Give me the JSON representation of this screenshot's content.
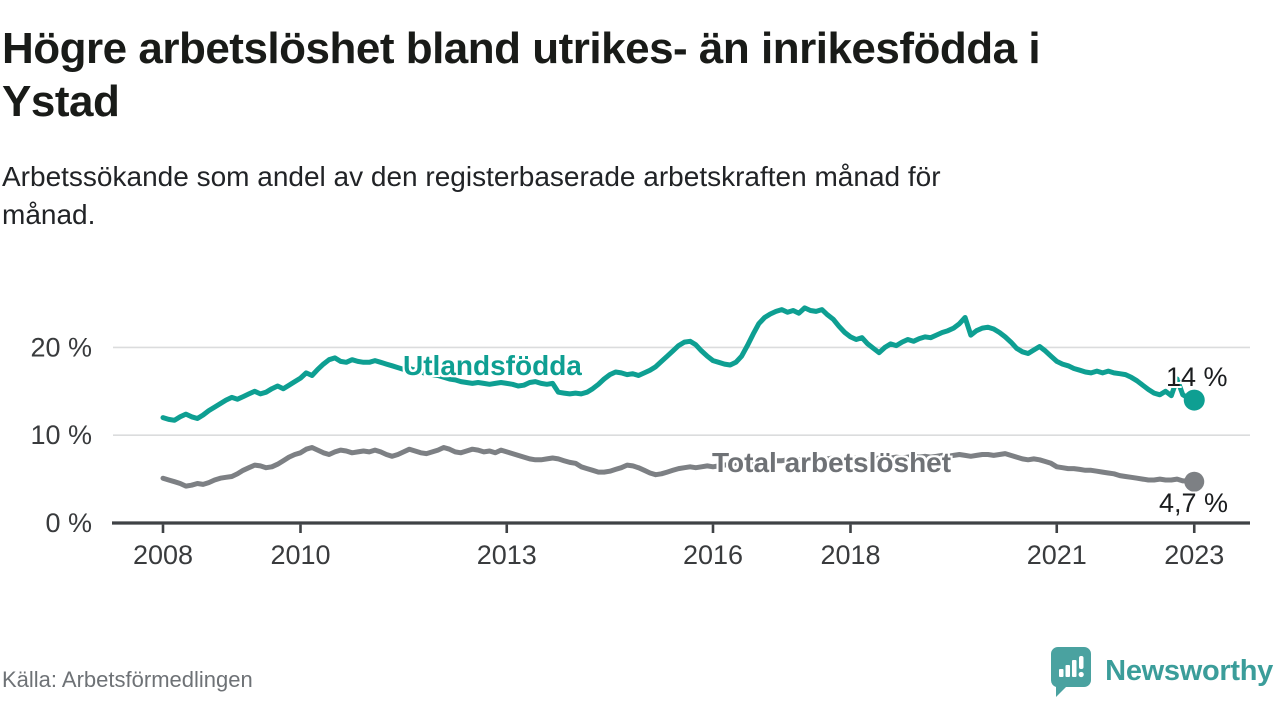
{
  "header": {
    "title": "Högre arbetslöshet bland utrikes- än inrikesfödda i\nYstad",
    "subtitle": "Arbetssökande som andel av den registerbaserade arbetskraften månad för\nmånad."
  },
  "chart_data": {
    "type": "line",
    "frequency": "monthly",
    "x_start": "2008-01",
    "x_end": "2023-01",
    "x_ticks": [
      {
        "year": 2008,
        "label": "2008"
      },
      {
        "year": 2010,
        "label": "2010"
      },
      {
        "year": 2013,
        "label": "2013"
      },
      {
        "year": 2016,
        "label": "2016"
      },
      {
        "year": 2018,
        "label": "2018"
      },
      {
        "year": 2021,
        "label": "2021"
      },
      {
        "year": 2023,
        "label": "2023"
      }
    ],
    "y_ticks": [
      {
        "value": 0,
        "label": "0 %"
      },
      {
        "value": 10,
        "label": "10 %"
      },
      {
        "value": 20,
        "label": "20 %"
      }
    ],
    "ylim": [
      0,
      26
    ],
    "grid": "horizontal",
    "legend_position": "inline-labels",
    "series": [
      {
        "name": "Utlandsfödda",
        "color": "#0e9f92",
        "end_label": "14 %",
        "end_value": 14,
        "values": [
          12.0,
          11.8,
          11.7,
          12.1,
          12.4,
          12.1,
          11.9,
          12.3,
          12.8,
          13.2,
          13.6,
          14.0,
          14.3,
          14.1,
          14.4,
          14.7,
          15.0,
          14.7,
          14.9,
          15.3,
          15.6,
          15.3,
          15.7,
          16.1,
          16.5,
          17.1,
          16.8,
          17.5,
          18.1,
          18.6,
          18.8,
          18.4,
          18.3,
          18.6,
          18.4,
          18.3,
          18.3,
          18.5,
          18.3,
          18.1,
          17.9,
          17.7,
          17.5,
          17.6,
          17.4,
          17.2,
          17.0,
          16.9,
          16.8,
          16.6,
          16.4,
          16.3,
          16.1,
          16.0,
          15.9,
          16.0,
          15.9,
          15.8,
          15.9,
          16.0,
          15.9,
          15.8,
          15.6,
          15.7,
          16.0,
          16.1,
          15.9,
          15.8,
          15.9,
          14.9,
          14.8,
          14.7,
          14.8,
          14.7,
          14.9,
          15.3,
          15.8,
          16.4,
          16.9,
          17.2,
          17.1,
          16.9,
          17.0,
          16.8,
          17.1,
          17.4,
          17.8,
          18.4,
          19.0,
          19.6,
          20.2,
          20.6,
          20.7,
          20.3,
          19.6,
          19.0,
          18.5,
          18.3,
          18.1,
          18.0,
          18.3,
          19.0,
          20.2,
          21.5,
          22.7,
          23.4,
          23.8,
          24.1,
          24.3,
          24.0,
          24.2,
          23.9,
          24.5,
          24.2,
          24.1,
          24.3,
          23.7,
          23.2,
          22.4,
          21.7,
          21.2,
          20.9,
          21.1,
          20.4,
          19.9,
          19.4,
          20.0,
          20.4,
          20.2,
          20.6,
          20.9,
          20.7,
          21.0,
          21.2,
          21.1,
          21.4,
          21.7,
          21.9,
          22.2,
          22.7,
          23.4,
          21.4,
          21.9,
          22.2,
          22.3,
          22.1,
          21.7,
          21.2,
          20.6,
          19.9,
          19.5,
          19.3,
          19.7,
          20.1,
          19.6,
          19.0,
          18.4,
          18.1,
          17.9,
          17.6,
          17.4,
          17.2,
          17.1,
          17.3,
          17.1,
          17.3,
          17.1,
          17.0,
          16.9,
          16.6,
          16.2,
          15.7,
          15.2,
          14.8,
          14.6,
          15.0,
          14.5,
          16.4,
          14.6,
          14.2,
          14.0
        ]
      },
      {
        "name": "Total arbetslöshet",
        "color": "#7d8084",
        "end_label": "4,7 %",
        "end_value": 4.7,
        "values": [
          5.1,
          4.9,
          4.7,
          4.5,
          4.2,
          4.3,
          4.5,
          4.4,
          4.6,
          4.9,
          5.1,
          5.2,
          5.3,
          5.6,
          6.0,
          6.3,
          6.6,
          6.5,
          6.3,
          6.4,
          6.7,
          7.1,
          7.5,
          7.8,
          8.0,
          8.4,
          8.6,
          8.3,
          8.0,
          7.8,
          8.1,
          8.3,
          8.2,
          8.0,
          8.1,
          8.2,
          8.1,
          8.3,
          8.1,
          7.8,
          7.6,
          7.8,
          8.1,
          8.4,
          8.2,
          8.0,
          7.9,
          8.1,
          8.3,
          8.6,
          8.4,
          8.1,
          8.0,
          8.2,
          8.4,
          8.3,
          8.1,
          8.2,
          8.0,
          8.3,
          8.1,
          7.9,
          7.7,
          7.5,
          7.3,
          7.2,
          7.2,
          7.3,
          7.4,
          7.3,
          7.1,
          6.9,
          6.8,
          6.4,
          6.2,
          6.0,
          5.8,
          5.8,
          5.9,
          6.1,
          6.3,
          6.6,
          6.5,
          6.3,
          6.0,
          5.7,
          5.5,
          5.6,
          5.8,
          6.0,
          6.2,
          6.3,
          6.4,
          6.3,
          6.4,
          6.5,
          6.4,
          6.5,
          6.6,
          6.7,
          6.8,
          6.9,
          7.0,
          6.9,
          7.0,
          7.1,
          7.0,
          7.1,
          7.1,
          7.2,
          7.3,
          7.2,
          7.3,
          7.4,
          7.3,
          7.2,
          7.3,
          7.4,
          7.3,
          7.4,
          7.3,
          7.4,
          7.3,
          7.2,
          7.3,
          7.4,
          7.5,
          7.4,
          7.5,
          7.4,
          7.5,
          7.6,
          7.5,
          7.6,
          7.5,
          7.6,
          7.7,
          7.6,
          7.7,
          7.8,
          7.7,
          7.6,
          7.7,
          7.8,
          7.8,
          7.7,
          7.8,
          7.9,
          7.7,
          7.5,
          7.3,
          7.2,
          7.3,
          7.2,
          7.0,
          6.8,
          6.4,
          6.3,
          6.2,
          6.2,
          6.1,
          6.0,
          6.0,
          5.9,
          5.8,
          5.7,
          5.6,
          5.4,
          5.3,
          5.2,
          5.1,
          5.0,
          4.9,
          4.9,
          5.0,
          4.9,
          4.9,
          5.0,
          4.8,
          4.8,
          4.7
        ]
      }
    ]
  },
  "footer": {
    "source": "Källa: Arbetsförmedlingen",
    "brand": "Newsworthy"
  },
  "colors": {
    "accent_teal": "#0e9f92",
    "line_gray": "#7d8084",
    "logo_teal": "#4aa2a0",
    "brand_text": "#3b9d9a",
    "axis": "#3f4245",
    "gridline": "#dbdcdd",
    "axis_text": "#393b3d"
  }
}
